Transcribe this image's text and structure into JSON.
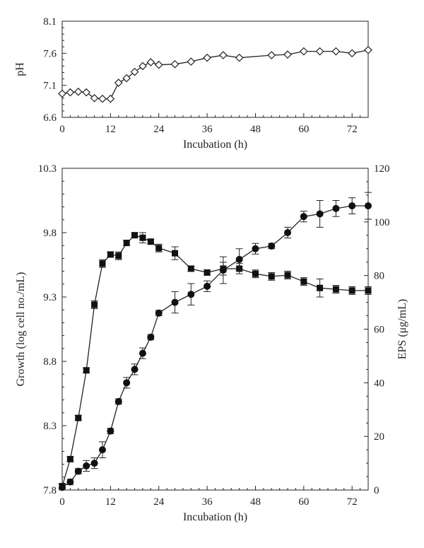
{
  "chart_data": [
    {
      "type": "line",
      "ylabel": "pH",
      "xlabel": "Incubation (h)",
      "xlim": [
        0,
        76
      ],
      "ylim": [
        6.6,
        8.1
      ],
      "x_ticks": [
        0,
        12,
        24,
        36,
        48,
        60,
        72
      ],
      "y_ticks": [
        6.6,
        7.1,
        7.6,
        8.1
      ],
      "grid": false,
      "series": [
        {
          "marker": "open-diamond",
          "x": [
            0,
            2,
            4,
            6,
            8,
            10,
            12,
            14,
            16,
            18,
            20,
            22,
            24,
            28,
            32,
            36,
            40,
            44,
            52,
            56,
            60,
            64,
            68,
            72,
            76
          ],
          "y": [
            6.97,
            6.99,
            7.0,
            6.99,
            6.9,
            6.89,
            6.89,
            7.14,
            7.21,
            7.31,
            7.4,
            7.46,
            7.42,
            7.43,
            7.47,
            7.53,
            7.57,
            7.53,
            7.57,
            7.58,
            7.63,
            7.63,
            7.63,
            7.6,
            7.65
          ]
        }
      ]
    },
    {
      "type": "line",
      "xlabel": "Incubation (h)",
      "ylabel": "Growth (log cell no./mL)",
      "y2label": "EPS (μg/mL)",
      "xlim": [
        0,
        76
      ],
      "ylim": [
        7.8,
        10.3
      ],
      "y2lim": [
        0,
        120
      ],
      "x_ticks": [
        0,
        12,
        24,
        36,
        48,
        60,
        72
      ],
      "y_ticks": [
        7.8,
        8.3,
        8.8,
        9.3,
        9.8,
        10.3
      ],
      "y2_ticks": [
        0,
        20,
        40,
        60,
        80,
        100,
        120
      ],
      "grid": false,
      "series": [
        {
          "marker": "filled-square",
          "axis": "left",
          "x": [
            0,
            2,
            4,
            6,
            8,
            10,
            12,
            14,
            16,
            18,
            20,
            22,
            24,
            28,
            32,
            36,
            40,
            44,
            48,
            52,
            56,
            60,
            64,
            68,
            72,
            76
          ],
          "y": [
            7.83,
            8.04,
            8.36,
            8.73,
            9.24,
            9.56,
            9.63,
            9.62,
            9.72,
            9.78,
            9.76,
            9.73,
            9.68,
            9.64,
            9.52,
            9.49,
            9.52,
            9.52,
            9.48,
            9.46,
            9.47,
            9.42,
            9.37,
            9.36,
            9.35,
            9.35
          ],
          "error": [
            0.02,
            0.02,
            0.02,
            0.02,
            0.03,
            0.03,
            0.02,
            0.03,
            0.02,
            0.02,
            0.04,
            0.02,
            0.03,
            0.05,
            0.02,
            0.02,
            0.05,
            0.04,
            0.03,
            0.03,
            0.03,
            0.03,
            0.07,
            0.03,
            0.03,
            0.03
          ]
        },
        {
          "marker": "filled-circle",
          "axis": "right",
          "x": [
            0,
            2,
            4,
            6,
            8,
            10,
            12,
            14,
            16,
            18,
            20,
            22,
            24,
            28,
            32,
            36,
            40,
            44,
            48,
            52,
            56,
            60,
            64,
            68,
            72,
            76
          ],
          "y": [
            1,
            3,
            7,
            9,
            10,
            15,
            22,
            33,
            40,
            45,
            51,
            57,
            66,
            70,
            73,
            76,
            82,
            86,
            90,
            91,
            96,
            102,
            103,
            105,
            106,
            106
          ],
          "error": [
            1,
            1,
            1,
            2,
            2,
            3,
            1,
            1,
            2,
            2,
            2,
            1,
            1,
            4,
            4,
            2,
            5,
            4,
            2,
            1,
            2,
            2,
            5,
            3,
            3,
            5
          ]
        }
      ]
    }
  ]
}
